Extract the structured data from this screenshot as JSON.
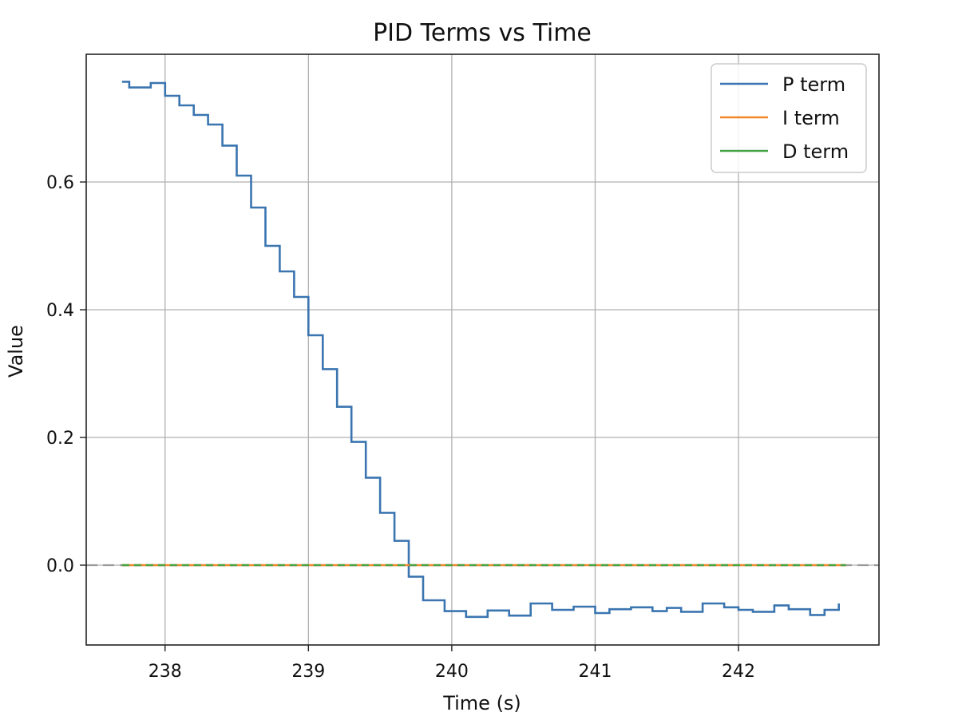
{
  "chart_data": {
    "type": "line",
    "title": "PID Terms vs Time",
    "xlabel": "Time (s)",
    "ylabel": "Value",
    "xlim": [
      237.45,
      242.98
    ],
    "ylim": [
      -0.125,
      0.8
    ],
    "xticks": [
      238,
      239,
      240,
      241,
      242
    ],
    "yticks": [
      0.0,
      0.2,
      0.4,
      0.6
    ],
    "xtick_labels": [
      "238",
      "239",
      "240",
      "241",
      "242"
    ],
    "ytick_labels": [
      "0.0",
      "0.2",
      "0.4",
      "0.6"
    ],
    "grid": true,
    "legend_position": "top-right",
    "reference_line": {
      "y": 0.0,
      "style": "dashed",
      "color": "#999999"
    },
    "series": [
      {
        "name": "P term",
        "color": "#3a75b0",
        "step": true,
        "x": [
          237.7,
          237.75,
          237.9,
          238.0,
          238.1,
          238.2,
          238.3,
          238.4,
          238.5,
          238.6,
          238.7,
          238.8,
          238.9,
          239.0,
          239.1,
          239.2,
          239.3,
          239.4,
          239.5,
          239.6,
          239.7,
          239.8,
          239.95,
          240.1,
          240.25,
          240.4,
          240.55,
          240.7,
          240.85,
          241.0,
          241.1,
          241.25,
          241.4,
          241.5,
          241.6,
          241.75,
          241.9,
          242.0,
          242.1,
          242.25,
          242.35,
          242.5,
          242.6,
          242.7
        ],
        "y": [
          0.757,
          0.748,
          0.755,
          0.735,
          0.72,
          0.705,
          0.69,
          0.657,
          0.61,
          0.56,
          0.5,
          0.46,
          0.42,
          0.36,
          0.307,
          0.248,
          0.193,
          0.137,
          0.082,
          0.038,
          -0.018,
          -0.055,
          -0.072,
          -0.081,
          -0.071,
          -0.079,
          -0.06,
          -0.07,
          -0.065,
          -0.075,
          -0.069,
          -0.066,
          -0.072,
          -0.067,
          -0.073,
          -0.06,
          -0.066,
          -0.07,
          -0.073,
          -0.063,
          -0.069,
          -0.078,
          -0.07,
          -0.06
        ]
      },
      {
        "name": "I term",
        "color": "#f0882a",
        "step": false,
        "x": [
          237.7,
          242.75
        ],
        "y": [
          0.0,
          0.0
        ]
      },
      {
        "name": "D term",
        "color": "#45a245",
        "step": false,
        "x": [
          237.7,
          242.75
        ],
        "y": [
          0.0,
          0.0
        ]
      }
    ]
  }
}
